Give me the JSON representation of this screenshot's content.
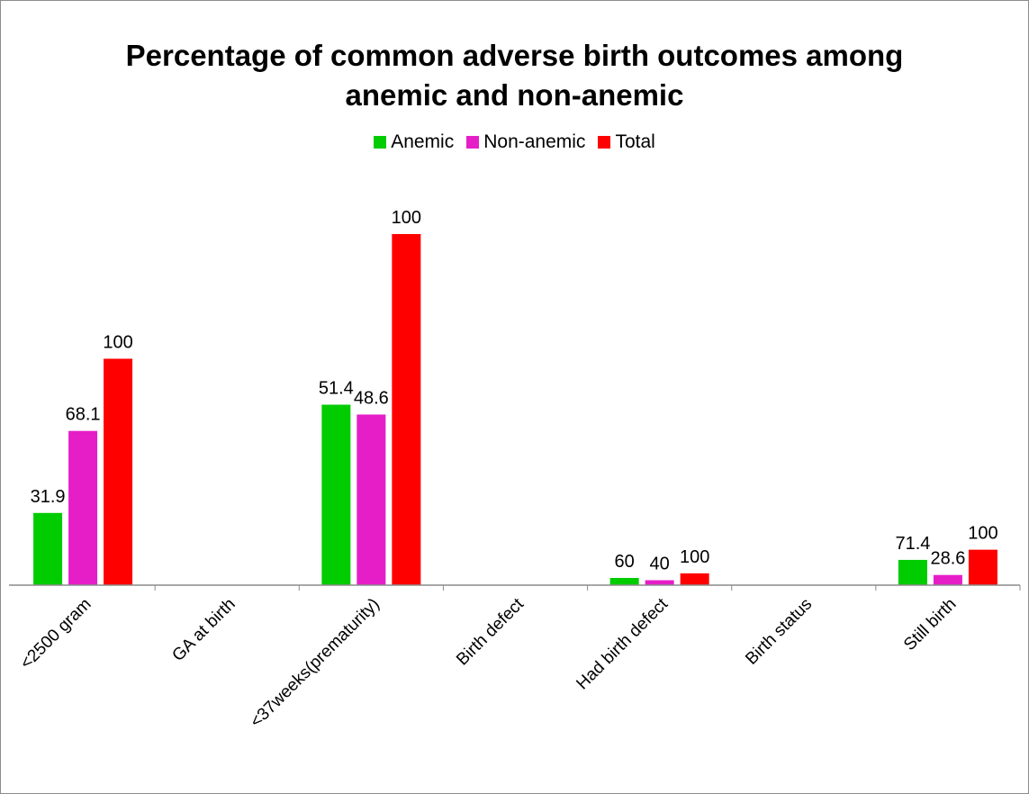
{
  "colors": {
    "anemic": "#00cc00",
    "non_anemic": "#e61ec8",
    "total": "#ff0000",
    "axis": "#8c8c8c"
  },
  "chart_data": {
    "type": "bar",
    "title": "Percentage of common  adverse birth outcomes among anemic and non-anemic",
    "title_lines": [
      "Percentage of common  adverse birth outcomes among",
      "anemic and non-anemic"
    ],
    "legend": [
      "Anemic",
      "Non-anemic",
      "Total"
    ],
    "legend_position": "top",
    "categories": [
      "<2500 gram",
      "GA at birth",
      "<37weeks(prematurity)",
      "Birth defect",
      "Had birth defect",
      "Birth status",
      "Still birth"
    ],
    "series": [
      {
        "name": "Anemic",
        "values": [
          31.9,
          null,
          51.4,
          null,
          60,
          null,
          71.4
        ],
        "heights": [
          22,
          null,
          55,
          null,
          2.2,
          null,
          7.7
        ]
      },
      {
        "name": "Non-anemic",
        "values": [
          68.1,
          null,
          48.6,
          null,
          40,
          null,
          28.6
        ],
        "heights": [
          47,
          null,
          52,
          null,
          1.5,
          null,
          3.1
        ]
      },
      {
        "name": "Total",
        "values": [
          100,
          null,
          100,
          null,
          100,
          null,
          100
        ],
        "heights": [
          69,
          null,
          107,
          null,
          3.6,
          null,
          10.8
        ]
      }
    ],
    "data_labels": [
      [
        "31.9",
        "",
        "51.4",
        "",
        "60",
        "",
        "71.4"
      ],
      [
        "68.1",
        "",
        "48.6",
        "",
        "40",
        "",
        "28.6"
      ],
      [
        "100",
        "",
        "100",
        "",
        "100",
        "",
        "100"
      ]
    ],
    "ylim": [
      0,
      107
    ],
    "grid": false,
    "xlabel": "",
    "ylabel": ""
  }
}
